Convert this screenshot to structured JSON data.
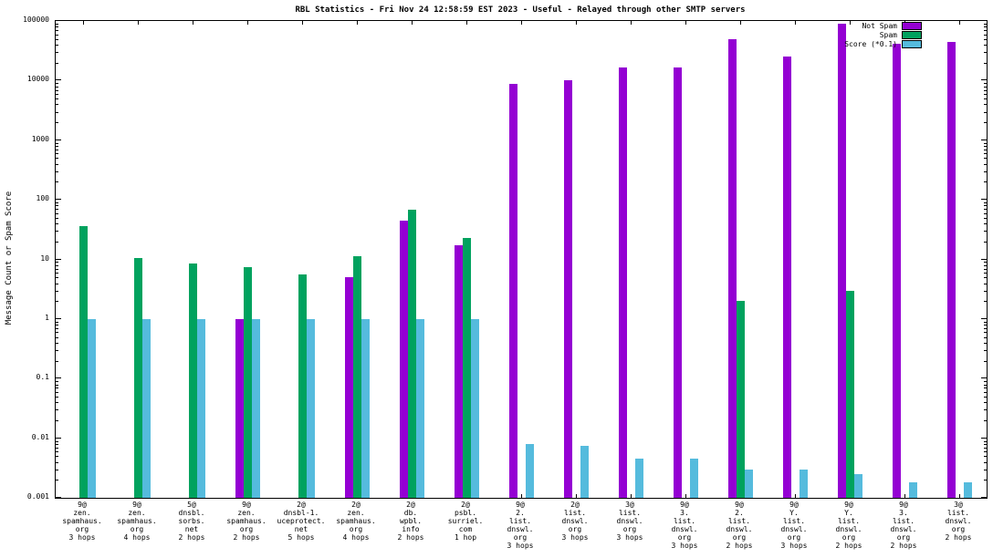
{
  "chart_data": {
    "type": "bar",
    "title": "RBL Statistics - Fri Nov 24 12:58:59 EST 2023 - Useful - Relayed through other SMTP servers",
    "ylabel": "Message Count or Spam Score",
    "xlabel": "",
    "yscale": "log",
    "ylim": [
      0.001,
      100000
    ],
    "yticks": [
      "100000",
      "10000",
      "1000",
      "100",
      "10",
      "1",
      "0.1",
      "0.01",
      "0.001"
    ],
    "grid": false,
    "legend_position": "top-right",
    "categories": [
      [
        "9@",
        "zen.",
        "spamhaus.",
        "org",
        "3 hops"
      ],
      [
        "9@",
        "zen.",
        "spamhaus.",
        "org",
        "4 hops"
      ],
      [
        "5@",
        "dnsbl.",
        "sorbs.",
        "net",
        "2 hops"
      ],
      [
        "9@",
        "zen.",
        "spamhaus.",
        "org",
        "2 hops"
      ],
      [
        "2@",
        "dnsbl-1.",
        "uceprotect.",
        "net",
        "5 hops"
      ],
      [
        "2@",
        "zen.",
        "spamhaus.",
        "org",
        "4 hops"
      ],
      [
        "2@",
        "db.",
        "wpbl.",
        "info",
        "2 hops"
      ],
      [
        "2@",
        "psbl.",
        "surriel.",
        "com",
        "1 hop"
      ],
      [
        "9@",
        "2.",
        "list.",
        "dnswl.",
        "org",
        "3 hops"
      ],
      [
        "2@",
        "list.",
        "dnswl.",
        "org",
        "3 hops"
      ],
      [
        "3@",
        "list.",
        "dnswl.",
        "org",
        "3 hops"
      ],
      [
        "9@",
        "3.",
        "list.",
        "dnswl.",
        "org",
        "3 hops"
      ],
      [
        "9@",
        "2.",
        "list.",
        "dnswl.",
        "org",
        "2 hops"
      ],
      [
        "9@",
        "Y.",
        "list.",
        "dnswl.",
        "org",
        "3 hops"
      ],
      [
        "9@",
        "Y.",
        "list.",
        "dnswl.",
        "org",
        "2 hops"
      ],
      [
        "9@",
        "3.",
        "list.",
        "dnswl.",
        "org",
        "2 hops"
      ],
      [
        "3@",
        "list.",
        "dnswl.",
        "org",
        "2 hops"
      ]
    ],
    "series": [
      {
        "name": "Not Spam",
        "color": "#9400d3",
        "values": [
          null,
          null,
          null,
          1,
          null,
          5,
          45,
          17,
          8800,
          10000,
          16500,
          16500,
          50000,
          25000,
          90000,
          42000,
          45000
        ]
      },
      {
        "name": "Spam",
        "color": "#00a25e",
        "values": [
          36,
          10.5,
          8.5,
          7.5,
          5.5,
          11.5,
          68,
          23,
          null,
          null,
          null,
          null,
          2,
          null,
          3,
          null,
          null
        ]
      },
      {
        "name": "Score (*0.1)",
        "color": "#55bbdd",
        "values": [
          1,
          1,
          1,
          1,
          1,
          1,
          1,
          1,
          0.008,
          0.0075,
          0.0045,
          0.0045,
          0.003,
          0.003,
          0.0025,
          0.0018,
          0.0018
        ]
      }
    ]
  }
}
